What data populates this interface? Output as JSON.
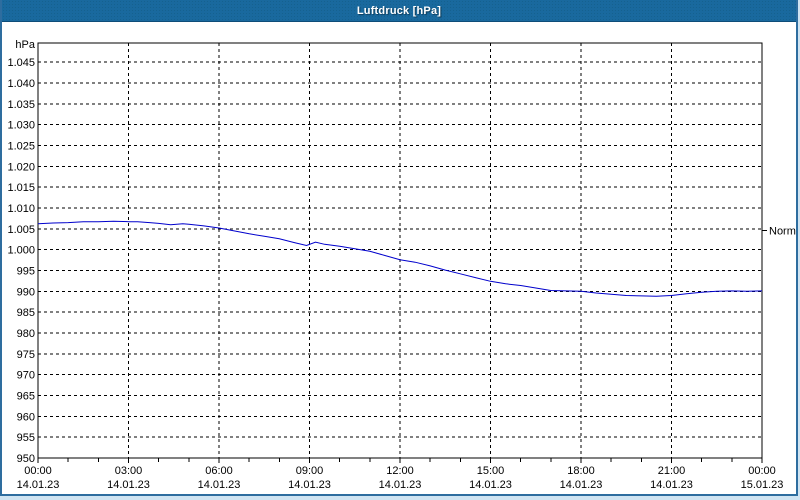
{
  "window": {
    "title": "Luftdruck [hPa]"
  },
  "colors": {
    "titlebar_bg": "#19699e",
    "titlebar_dot": "#15618f",
    "window_border": "#2e6d9f",
    "page_bg": "#cfe4f2",
    "line": "#0000cc",
    "grid": "#000000",
    "axis_text": "#000000",
    "title_text": "#ffffff"
  },
  "chart_data": {
    "type": "line",
    "title": "Luftdruck [hPa]",
    "ylabel": "hPa",
    "grid": "dashed",
    "legend_position": "none",
    "x_axis": {
      "start_hour": 0,
      "end_hour": 24,
      "minor_tick_step_hours": 1,
      "major_tick_step_hours": 3,
      "ticks": [
        {
          "t": 0,
          "time": "00:00",
          "date": "14.01.23"
        },
        {
          "t": 3,
          "time": "03:00",
          "date": "14.01.23"
        },
        {
          "t": 6,
          "time": "06:00",
          "date": "14.01.23"
        },
        {
          "t": 9,
          "time": "09:00",
          "date": "14.01.23"
        },
        {
          "t": 12,
          "time": "12:00",
          "date": "14.01.23"
        },
        {
          "t": 15,
          "time": "15:00",
          "date": "14.01.23"
        },
        {
          "t": 18,
          "time": "18:00",
          "date": "14.01.23"
        },
        {
          "t": 21,
          "time": "21:00",
          "date": "14.01.23"
        },
        {
          "t": 24,
          "time": "00:00",
          "date": "15.01.23"
        }
      ]
    },
    "y_axis": {
      "unit": "hPa",
      "min": 950,
      "max": 1049.6,
      "grid_step": 5,
      "ticks": [
        {
          "v": 1045,
          "label": "1.045"
        },
        {
          "v": 1040,
          "label": "1.040"
        },
        {
          "v": 1035,
          "label": "1.035"
        },
        {
          "v": 1030,
          "label": "1.030"
        },
        {
          "v": 1025,
          "label": "1.025"
        },
        {
          "v": 1020,
          "label": "1.020"
        },
        {
          "v": 1015,
          "label": "1.015"
        },
        {
          "v": 1010,
          "label": "1.010"
        },
        {
          "v": 1005,
          "label": "1.005"
        },
        {
          "v": 1000,
          "label": "1.000"
        },
        {
          "v": 995,
          "label": "995"
        },
        {
          "v": 990,
          "label": "990"
        },
        {
          "v": 985,
          "label": "985"
        },
        {
          "v": 980,
          "label": "980"
        },
        {
          "v": 975,
          "label": "975"
        },
        {
          "v": 970,
          "label": "970"
        },
        {
          "v": 965,
          "label": "965"
        },
        {
          "v": 960,
          "label": "960"
        },
        {
          "v": 955,
          "label": "955"
        },
        {
          "v": 950,
          "label": "950"
        }
      ]
    },
    "annotations": [
      {
        "label": "Normal",
        "value": 1004.6,
        "side": "right"
      }
    ],
    "series": [
      {
        "name": "Luftdruck",
        "color": "#0000cc",
        "points": [
          [
            0,
            1006.2
          ],
          [
            0.5,
            1006.4
          ],
          [
            1,
            1006.5
          ],
          [
            1.5,
            1006.7
          ],
          [
            2,
            1006.7
          ],
          [
            2.5,
            1006.8
          ],
          [
            3,
            1006.7
          ],
          [
            3.3,
            1006.7
          ],
          [
            3.7,
            1006.5
          ],
          [
            4,
            1006.3
          ],
          [
            4.4,
            1006.0
          ],
          [
            4.8,
            1006.2
          ],
          [
            5,
            1006.1
          ],
          [
            5.5,
            1005.7
          ],
          [
            6,
            1005.2
          ],
          [
            6.5,
            1004.5
          ],
          [
            7,
            1003.8
          ],
          [
            7.5,
            1003.2
          ],
          [
            8,
            1002.6
          ],
          [
            8.5,
            1001.7
          ],
          [
            8.9,
            1001.0
          ],
          [
            9.2,
            1001.8
          ],
          [
            9.5,
            1001.3
          ],
          [
            10,
            1000.8
          ],
          [
            10.5,
            1000.2
          ],
          [
            11,
            999.6
          ],
          [
            11.5,
            998.6
          ],
          [
            12,
            997.6
          ],
          [
            12.5,
            997.0
          ],
          [
            13,
            996.1
          ],
          [
            13.5,
            995.1
          ],
          [
            14,
            994.2
          ],
          [
            14.5,
            993.3
          ],
          [
            15,
            992.4
          ],
          [
            15.5,
            991.8
          ],
          [
            16,
            991.4
          ],
          [
            16.5,
            990.8
          ],
          [
            17,
            990.2
          ],
          [
            17.5,
            990.1
          ],
          [
            18,
            990.0
          ],
          [
            18.5,
            989.6
          ],
          [
            19,
            989.3
          ],
          [
            19.5,
            989.0
          ],
          [
            20,
            988.9
          ],
          [
            20.5,
            988.8
          ],
          [
            21,
            989.0
          ],
          [
            21.5,
            989.4
          ],
          [
            22,
            989.8
          ],
          [
            22.5,
            990.0
          ],
          [
            23,
            990.1
          ],
          [
            23.5,
            990.0
          ],
          [
            24,
            990.1
          ]
        ]
      }
    ]
  }
}
